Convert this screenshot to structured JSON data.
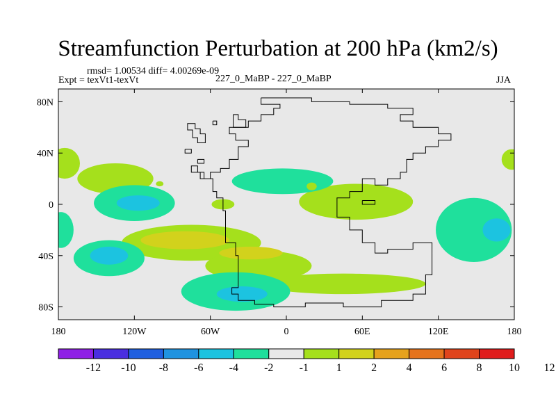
{
  "title": "Streamfunction Perturbation at 200 hPa (km2/s)",
  "stats": "rmsd= 1.00534 diff= 4.00269e-09",
  "expt": "Expt = texVt1-texVt",
  "case": "227_0_MaBP - 227_0_MaBP",
  "season": "JJA",
  "chart_data": {
    "type": "heatmap",
    "title": "Streamfunction Perturbation at 200 hPa (km2/s)",
    "xlim": [
      -180,
      180
    ],
    "ylim": [
      -90,
      90
    ],
    "x_ticks": [
      {
        "value": -180,
        "label": "180"
      },
      {
        "value": -120,
        "label": "120W"
      },
      {
        "value": -60,
        "label": "60W"
      },
      {
        "value": 0,
        "label": "0"
      },
      {
        "value": 60,
        "label": "60E"
      },
      {
        "value": 120,
        "label": "120E"
      },
      {
        "value": 180,
        "label": "180"
      }
    ],
    "y_ticks": [
      {
        "value": 80,
        "label": "80N"
      },
      {
        "value": 40,
        "label": "40N"
      },
      {
        "value": 0,
        "label": "0"
      },
      {
        "value": -40,
        "label": "40S"
      },
      {
        "value": -80,
        "label": "80S"
      }
    ],
    "colorbar": {
      "colors": [
        "#8f1fe6",
        "#4a2ee0",
        "#1f5fe0",
        "#1f93e0",
        "#1cc3e0",
        "#1fe09c",
        "#e8e8e8",
        "#a5e01c",
        "#d2d21c",
        "#e6a21c",
        "#e6731c",
        "#e0441c",
        "#e01c1c"
      ],
      "labels": [
        "-12",
        "-10",
        "-8",
        "-6",
        "-4",
        "-2",
        "-1",
        "1",
        "2",
        "4",
        "6",
        "8",
        "10",
        "12"
      ]
    },
    "blobs": [
      {
        "lon": -175,
        "lat": 32,
        "rlon": 12,
        "rlat": 12,
        "level": 2
      },
      {
        "lon": -135,
        "lat": 20,
        "rlon": 30,
        "rlat": 12,
        "level": 2
      },
      {
        "lon": -100,
        "lat": 16,
        "rlon": 3,
        "rlat": 2,
        "level": 2
      },
      {
        "lon": -120,
        "lat": 1,
        "rlon": 32,
        "rlat": 14,
        "level": -2
      },
      {
        "lon": -117,
        "lat": 1,
        "rlon": 17,
        "rlat": 6,
        "level": -4
      },
      {
        "lon": -178,
        "lat": -20,
        "rlon": 10,
        "rlat": 14,
        "level": -2
      },
      {
        "lon": -75,
        "lat": -30,
        "rlon": 55,
        "rlat": 14,
        "level": 2
      },
      {
        "lon": -22,
        "lat": -48,
        "rlon": 42,
        "rlat": 12,
        "level": 2
      },
      {
        "lon": -80,
        "lat": -28,
        "rlon": 35,
        "rlat": 7,
        "level": 4
      },
      {
        "lon": -28,
        "lat": -38,
        "rlon": 25,
        "rlat": 5,
        "level": 4
      },
      {
        "lon": -140,
        "lat": -42,
        "rlon": 28,
        "rlat": 14,
        "level": -2
      },
      {
        "lon": -140,
        "lat": -40,
        "rlon": 15,
        "rlat": 7,
        "level": -4
      },
      {
        "lon": 45,
        "lat": -62,
        "rlon": 65,
        "rlat": 8,
        "level": 2
      },
      {
        "lon": 55,
        "lat": 2,
        "rlon": 45,
        "rlat": 14,
        "level": 2
      },
      {
        "lon": -3,
        "lat": 18,
        "rlon": 40,
        "rlat": 10,
        "level": -2
      },
      {
        "lon": 20,
        "lat": 14,
        "rlon": 4,
        "rlat": 3,
        "level": 2
      },
      {
        "lon": -50,
        "lat": 0,
        "rlon": 9,
        "rlat": 4,
        "level": 2
      },
      {
        "lon": -40,
        "lat": -68,
        "rlon": 43,
        "rlat": 15,
        "level": -2
      },
      {
        "lon": -35,
        "lat": -70,
        "rlon": 20,
        "rlat": 6,
        "level": -4
      },
      {
        "lon": 148,
        "lat": -20,
        "rlon": 30,
        "rlat": 25,
        "level": -2
      },
      {
        "lon": 166,
        "lat": -20,
        "rlon": 11,
        "rlat": 9,
        "level": -4
      },
      {
        "lon": 178,
        "lat": 35,
        "rlon": 8,
        "rlat": 8,
        "level": 2
      }
    ],
    "coastline": [
      [
        [
          -20,
          83
        ],
        [
          20,
          83
        ],
        [
          20,
          80
        ],
        [
          50,
          80
        ],
        [
          50,
          78
        ],
        [
          80,
          78
        ],
        [
          80,
          75
        ],
        [
          100,
          75
        ],
        [
          100,
          70
        ],
        [
          90,
          70
        ],
        [
          90,
          65
        ],
        [
          100,
          65
        ],
        [
          100,
          60
        ],
        [
          120,
          60
        ],
        [
          120,
          55
        ],
        [
          130,
          55
        ],
        [
          130,
          50
        ],
        [
          120,
          50
        ],
        [
          120,
          45
        ],
        [
          110,
          45
        ],
        [
          110,
          40
        ],
        [
          100,
          40
        ],
        [
          100,
          35
        ],
        [
          95,
          35
        ],
        [
          95,
          25
        ],
        [
          90,
          25
        ],
        [
          90,
          20
        ],
        [
          80,
          20
        ],
        [
          80,
          15
        ],
        [
          70,
          15
        ],
        [
          70,
          20
        ],
        [
          60,
          20
        ],
        [
          60,
          10
        ],
        [
          50,
          10
        ],
        [
          50,
          5
        ],
        [
          40,
          5
        ],
        [
          40,
          -10
        ],
        [
          50,
          -10
        ],
        [
          50,
          -20
        ],
        [
          60,
          -20
        ],
        [
          60,
          -30
        ],
        [
          70,
          -30
        ],
        [
          70,
          -38
        ],
        [
          80,
          -38
        ],
        [
          80,
          -35
        ],
        [
          100,
          -35
        ],
        [
          100,
          -30
        ],
        [
          115,
          -30
        ],
        [
          115,
          -55
        ],
        [
          110,
          -55
        ],
        [
          110,
          -70
        ],
        [
          100,
          -70
        ],
        [
          100,
          -75
        ],
        [
          75,
          -75
        ],
        [
          75,
          -80
        ],
        [
          45,
          -80
        ],
        [
          45,
          -77
        ],
        [
          15,
          -77
        ],
        [
          15,
          -80
        ],
        [
          -10,
          -80
        ],
        [
          -10,
          -78
        ],
        [
          -25,
          -78
        ],
        [
          -25,
          -75
        ],
        [
          -38,
          -75
        ],
        [
          -38,
          -70
        ],
        [
          -43,
          -70
        ],
        [
          -43,
          -65
        ],
        [
          -38,
          -65
        ],
        [
          -38,
          -40
        ],
        [
          -40,
          -40
        ],
        [
          -40,
          -30
        ],
        [
          -48,
          -30
        ],
        [
          -48,
          -20
        ],
        [
          -48,
          -10
        ],
        [
          -48,
          -5
        ],
        [
          -50,
          -5
        ],
        [
          -50,
          5
        ],
        [
          -55,
          5
        ],
        [
          -55,
          10
        ],
        [
          -58,
          10
        ],
        [
          -58,
          20
        ],
        [
          -65,
          20
        ],
        [
          -65,
          25
        ],
        [
          -70,
          25
        ],
        [
          -70,
          30
        ],
        [
          -75,
          30
        ],
        [
          -75,
          25
        ],
        [
          -68,
          25
        ],
        [
          -68,
          20
        ],
        [
          -60,
          20
        ],
        [
          -60,
          25
        ],
        [
          -52,
          25
        ],
        [
          -52,
          28
        ],
        [
          -45,
          28
        ],
        [
          -45,
          35
        ],
        [
          -38,
          35
        ],
        [
          -38,
          45
        ],
        [
          -30,
          45
        ],
        [
          -30,
          50
        ],
        [
          -40,
          50
        ],
        [
          -40,
          55
        ],
        [
          -45,
          55
        ],
        [
          -45,
          60
        ],
        [
          -30,
          60
        ],
        [
          -30,
          65
        ],
        [
          -20,
          65
        ],
        [
          -20,
          70
        ],
        [
          -10,
          70
        ],
        [
          -10,
          75
        ],
        [
          -5,
          75
        ],
        [
          -5,
          78
        ],
        [
          -20,
          78
        ],
        [
          -20,
          83
        ]
      ],
      [
        [
          -75,
          63
        ],
        [
          -72,
          63
        ],
        [
          -72,
          59
        ],
        [
          -68,
          59
        ],
        [
          -68,
          55
        ],
        [
          -64,
          55
        ],
        [
          -64,
          48
        ],
        [
          -70,
          48
        ],
        [
          -70,
          52
        ],
        [
          -74,
          52
        ],
        [
          -74,
          58
        ],
        [
          -78,
          58
        ],
        [
          -78,
          63
        ],
        [
          -75,
          63
        ]
      ],
      [
        [
          -42,
          70
        ],
        [
          -38,
          70
        ],
        [
          -38,
          66
        ],
        [
          -32,
          66
        ],
        [
          -32,
          60
        ],
        [
          -42,
          60
        ],
        [
          -42,
          70
        ]
      ],
      [
        [
          -58,
          65
        ],
        [
          -55,
          65
        ],
        [
          -55,
          62
        ],
        [
          -58,
          62
        ],
        [
          -58,
          65
        ]
      ],
      [
        [
          -80,
          43
        ],
        [
          -75,
          43
        ],
        [
          -75,
          40
        ],
        [
          -80,
          40
        ],
        [
          -80,
          43
        ]
      ],
      [
        [
          60,
          3
        ],
        [
          70,
          3
        ],
        [
          70,
          0
        ],
        [
          60,
          0
        ],
        [
          60,
          3
        ]
      ],
      [
        [
          -70,
          35
        ],
        [
          -65,
          35
        ],
        [
          -65,
          32
        ],
        [
          -70,
          32
        ],
        [
          -70,
          35
        ]
      ]
    ]
  }
}
